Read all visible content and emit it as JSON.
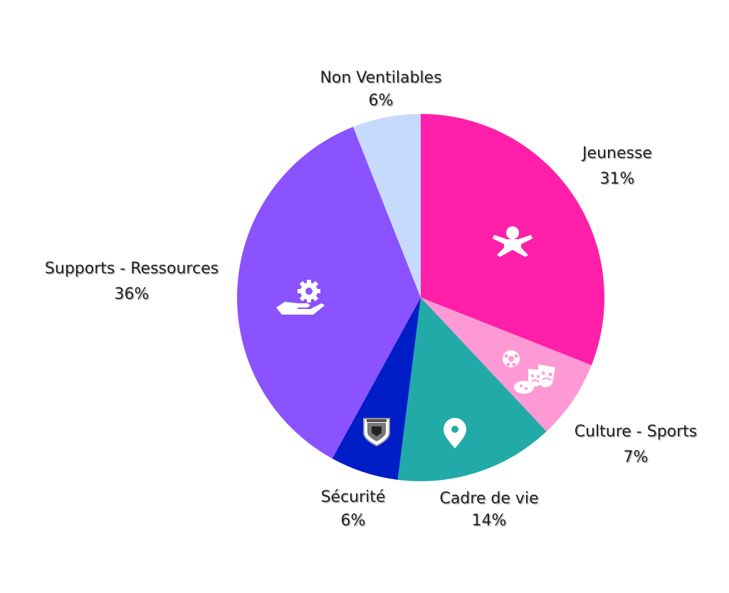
{
  "chart_data": {
    "type": "pie",
    "title": "",
    "slices": [
      {
        "label": "Jeunesse",
        "value": 31,
        "value_label": "31%",
        "color": "#ff1fa8",
        "icon": "child-icon"
      },
      {
        "label": "Culture - Sports",
        "value": 7,
        "value_label": "7%",
        "color": "#ff99d6",
        "icon": "culture-sports-icon"
      },
      {
        "label": "Cadre de vie",
        "value": 14,
        "value_label": "14%",
        "color": "#21aaa7",
        "icon": "location-pin-icon"
      },
      {
        "label": "Sécurité",
        "value": 6,
        "value_label": "6%",
        "color": "#001ec8",
        "icon": "police-badge-icon"
      },
      {
        "label": "Supports - Ressources",
        "value": 36,
        "value_label": "36%",
        "color": "#8b52ff",
        "icon": "hand-gear-icon"
      },
      {
        "label": "Non Ventilables",
        "value": 6,
        "value_label": "6%",
        "color": "#c6dafd",
        "icon": ""
      }
    ],
    "start_angle": "top",
    "direction": "clockwise",
    "legend": "none",
    "labels_outside": true
  }
}
